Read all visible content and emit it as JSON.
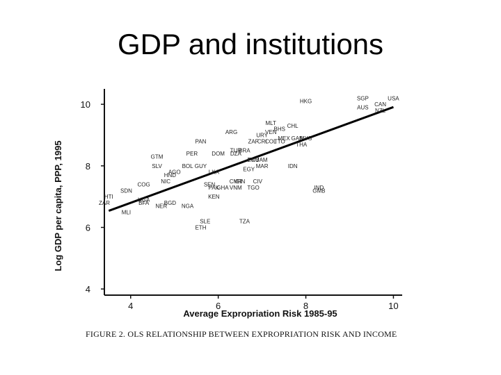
{
  "slide": {
    "title": "GDP and institutions",
    "caption": "FIGURE 2. OLS RELATIONSHIP BETWEEN EXPROPRIATION RISK AND INCOME"
  },
  "chart_data": {
    "type": "scatter",
    "title": "",
    "xlabel": "Average Expropriation Risk 1985-95",
    "ylabel": "Log GDP per capita, PPP, 1995",
    "xlim": [
      3.4,
      10.2
    ],
    "ylim": [
      3.8,
      10.5
    ],
    "xticks": [
      4,
      6,
      8,
      10
    ],
    "yticks": [
      4,
      6,
      8,
      10
    ],
    "grid": false,
    "points": [
      {
        "label": "HKG",
        "x": 8.0,
        "y": 10.1
      },
      {
        "label": "SGP",
        "x": 9.3,
        "y": 10.2
      },
      {
        "label": "USA",
        "x": 10.0,
        "y": 10.2
      },
      {
        "label": "AUS",
        "x": 9.3,
        "y": 9.9
      },
      {
        "label": "CAN",
        "x": 9.7,
        "y": 10.0
      },
      {
        "label": "NZL",
        "x": 9.7,
        "y": 9.8
      },
      {
        "label": "MLT",
        "x": 7.2,
        "y": 9.4
      },
      {
        "label": "CHL",
        "x": 7.7,
        "y": 9.3
      },
      {
        "label": "BHS",
        "x": 7.4,
        "y": 9.2
      },
      {
        "label": "ARG",
        "x": 6.3,
        "y": 9.1
      },
      {
        "label": "URY",
        "x": 7.0,
        "y": 9.0
      },
      {
        "label": "VEN",
        "x": 7.2,
        "y": 9.1
      },
      {
        "label": "MEX",
        "x": 7.5,
        "y": 8.9
      },
      {
        "label": "GAB",
        "x": 7.8,
        "y": 8.9
      },
      {
        "label": "MYS",
        "x": 8.0,
        "y": 8.9
      },
      {
        "label": "ZAF",
        "x": 6.8,
        "y": 8.8
      },
      {
        "label": "CRI",
        "x": 7.0,
        "y": 8.8
      },
      {
        "label": "COL",
        "x": 7.2,
        "y": 8.8
      },
      {
        "label": "TTO",
        "x": 7.4,
        "y": 8.8
      },
      {
        "label": "THA",
        "x": 7.9,
        "y": 8.7
      },
      {
        "label": "PAN",
        "x": 5.6,
        "y": 8.8
      },
      {
        "label": "TUR",
        "x": 6.4,
        "y": 8.5
      },
      {
        "label": "BRA",
        "x": 6.6,
        "y": 8.5
      },
      {
        "label": "PER",
        "x": 5.4,
        "y": 8.4
      },
      {
        "label": "DOM",
        "x": 6.0,
        "y": 8.4
      },
      {
        "label": "DZA",
        "x": 6.4,
        "y": 8.4
      },
      {
        "label": "GTM",
        "x": 4.6,
        "y": 8.3
      },
      {
        "label": "PRY",
        "x": 6.8,
        "y": 8.2
      },
      {
        "label": "JAM",
        "x": 7.0,
        "y": 8.2
      },
      {
        "label": "ECU",
        "x": 6.8,
        "y": 8.2
      },
      {
        "label": "MAR",
        "x": 7.0,
        "y": 8.0
      },
      {
        "label": "EGY",
        "x": 6.7,
        "y": 7.9
      },
      {
        "label": "IDN",
        "x": 7.7,
        "y": 8.0
      },
      {
        "label": "SLV",
        "x": 4.6,
        "y": 8.0
      },
      {
        "label": "BOL",
        "x": 5.3,
        "y": 8.0
      },
      {
        "label": "GUY",
        "x": 5.6,
        "y": 8.0
      },
      {
        "label": "AGO",
        "x": 5.0,
        "y": 7.8
      },
      {
        "label": "HND",
        "x": 4.9,
        "y": 7.7
      },
      {
        "label": "LKA",
        "x": 5.9,
        "y": 7.8
      },
      {
        "label": "NIC",
        "x": 4.8,
        "y": 7.5
      },
      {
        "label": "COG",
        "x": 4.3,
        "y": 7.4
      },
      {
        "label": "SEN",
        "x": 5.8,
        "y": 7.4
      },
      {
        "label": "PAK",
        "x": 5.9,
        "y": 7.3
      },
      {
        "label": "GHA",
        "x": 6.1,
        "y": 7.3
      },
      {
        "label": "CMR",
        "x": 6.4,
        "y": 7.5
      },
      {
        "label": "VNM",
        "x": 6.4,
        "y": 7.3
      },
      {
        "label": "GIN",
        "x": 6.5,
        "y": 7.5
      },
      {
        "label": "CIV",
        "x": 6.9,
        "y": 7.5
      },
      {
        "label": "TGO",
        "x": 6.8,
        "y": 7.3
      },
      {
        "label": "KEN",
        "x": 5.9,
        "y": 7.0
      },
      {
        "label": "IND",
        "x": 8.3,
        "y": 7.3
      },
      {
        "label": "GMB",
        "x": 8.3,
        "y": 7.2
      },
      {
        "label": "SDN",
        "x": 3.9,
        "y": 7.2
      },
      {
        "label": "HTI",
        "x": 3.5,
        "y": 7.0
      },
      {
        "label": "ZAR",
        "x": 3.4,
        "y": 6.8
      },
      {
        "label": "UGA",
        "x": 4.3,
        "y": 6.9
      },
      {
        "label": "BFA",
        "x": 4.3,
        "y": 6.8
      },
      {
        "label": "BGD",
        "x": 4.9,
        "y": 6.8
      },
      {
        "label": "NER",
        "x": 4.7,
        "y": 6.7
      },
      {
        "label": "NGA",
        "x": 5.3,
        "y": 6.7
      },
      {
        "label": "MLI",
        "x": 3.9,
        "y": 6.5
      },
      {
        "label": "SLE",
        "x": 5.7,
        "y": 6.2
      },
      {
        "label": "ETH",
        "x": 5.6,
        "y": 6.0
      },
      {
        "label": "TZA",
        "x": 6.6,
        "y": 6.2
      }
    ],
    "fit_line": [
      {
        "x": 3.5,
        "y": 6.54
      },
      {
        "x": 10.0,
        "y": 9.91
      }
    ]
  }
}
